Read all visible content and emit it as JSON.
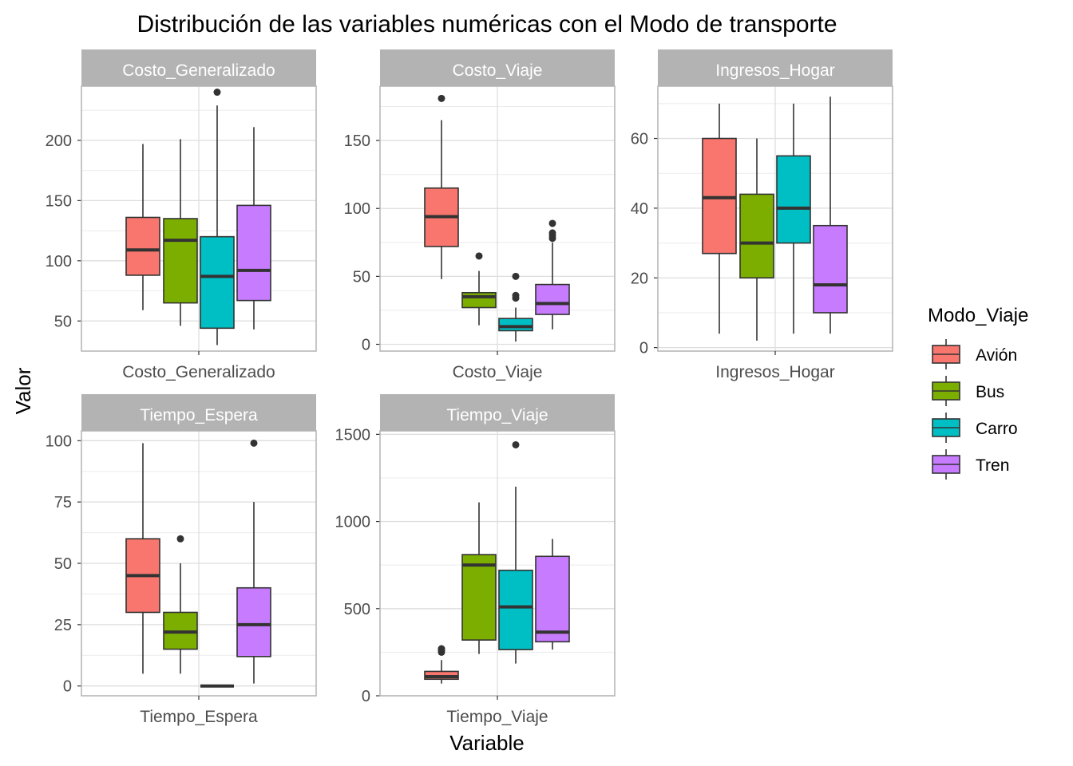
{
  "chart_data": {
    "type": "boxplot",
    "title": "Distribución de las variables numéricas con el Modo de transporte",
    "xlabel": "Variable",
    "ylabel": "Valor",
    "legend": {
      "title": "Modo_Viaje",
      "position": "right",
      "entries": [
        "Avión",
        "Bus",
        "Carro",
        "Tren"
      ]
    },
    "colors": {
      "Avión": "#F8766D",
      "Bus": "#7CAE00",
      "Carro": "#00BFC4",
      "Tren": "#C77CFF"
    },
    "grid": true,
    "facets": [
      {
        "name": "Costo_Generalizado",
        "ylim": [
          25,
          245
        ],
        "yticks": [
          50,
          100,
          150,
          200
        ],
        "boxes": [
          {
            "group": "Avión",
            "whisker_low": 59,
            "q1": 88,
            "median": 109,
            "q3": 136,
            "whisker_high": 197,
            "outliers": []
          },
          {
            "group": "Bus",
            "whisker_low": 46,
            "q1": 65,
            "median": 117,
            "q3": 135,
            "whisker_high": 201,
            "outliers": []
          },
          {
            "group": "Carro",
            "whisker_low": 30,
            "q1": 44,
            "median": 87,
            "q3": 120,
            "whisker_high": 229,
            "outliers": [
              240
            ]
          },
          {
            "group": "Tren",
            "whisker_low": 43,
            "q1": 67,
            "median": 92,
            "q3": 146,
            "whisker_high": 211,
            "outliers": []
          }
        ]
      },
      {
        "name": "Costo_Viaje",
        "ylim": [
          -5,
          190
        ],
        "yticks": [
          0,
          50,
          100,
          150
        ],
        "boxes": [
          {
            "group": "Avión",
            "whisker_low": 48,
            "q1": 72,
            "median": 94,
            "q3": 115,
            "whisker_high": 165,
            "outliers": [
              181
            ]
          },
          {
            "group": "Bus",
            "whisker_low": 14,
            "q1": 27,
            "median": 35,
            "q3": 38,
            "whisker_high": 54,
            "outliers": [
              65
            ]
          },
          {
            "group": "Carro",
            "whisker_low": 2,
            "q1": 10,
            "median": 13,
            "q3": 19,
            "whisker_high": 27,
            "outliers": [
              34,
              36,
              50
            ]
          },
          {
            "group": "Tren",
            "whisker_low": 11,
            "q1": 22,
            "median": 30,
            "q3": 44,
            "whisker_high": 75,
            "outliers": [
              78,
              80,
              82,
              89
            ]
          }
        ]
      },
      {
        "name": "Ingresos_Hogar",
        "ylim": [
          -1,
          75
        ],
        "yticks": [
          0,
          20,
          40,
          60
        ],
        "boxes": [
          {
            "group": "Avión",
            "whisker_low": 4,
            "q1": 27,
            "median": 43,
            "q3": 60,
            "whisker_high": 70,
            "outliers": []
          },
          {
            "group": "Bus",
            "whisker_low": 2,
            "q1": 20,
            "median": 30,
            "q3": 44,
            "whisker_high": 60,
            "outliers": []
          },
          {
            "group": "Carro",
            "whisker_low": 4,
            "q1": 30,
            "median": 40,
            "q3": 55,
            "whisker_high": 70,
            "outliers": []
          },
          {
            "group": "Tren",
            "whisker_low": 4,
            "q1": 10,
            "median": 18,
            "q3": 35,
            "whisker_high": 72,
            "outliers": []
          }
        ]
      },
      {
        "name": "Tiempo_Espera",
        "ylim": [
          -4,
          104
        ],
        "yticks": [
          0,
          25,
          50,
          75,
          100
        ],
        "boxes": [
          {
            "group": "Avión",
            "whisker_low": 5,
            "q1": 30,
            "median": 45,
            "q3": 60,
            "whisker_high": 99,
            "outliers": []
          },
          {
            "group": "Bus",
            "whisker_low": 5,
            "q1": 15,
            "median": 22,
            "q3": 30,
            "whisker_high": 50,
            "outliers": [
              60
            ]
          },
          {
            "group": "Carro",
            "whisker_low": 0,
            "q1": 0,
            "median": 0,
            "q3": 0,
            "whisker_high": 0,
            "outliers": []
          },
          {
            "group": "Tren",
            "whisker_low": 1,
            "q1": 12,
            "median": 25,
            "q3": 40,
            "whisker_high": 75,
            "outliers": [
              99
            ]
          }
        ]
      },
      {
        "name": "Tiempo_Viaje",
        "ylim": [
          0,
          1520
        ],
        "yticks": [
          0,
          500,
          1000,
          1500
        ],
        "boxes": [
          {
            "group": "Avión",
            "whisker_low": 70,
            "q1": 95,
            "median": 110,
            "q3": 140,
            "whisker_high": 205,
            "outliers": [
              250,
              260,
              270
            ]
          },
          {
            "group": "Bus",
            "whisker_low": 240,
            "q1": 320,
            "median": 750,
            "q3": 810,
            "whisker_high": 1110,
            "outliers": []
          },
          {
            "group": "Carro",
            "whisker_low": 185,
            "q1": 265,
            "median": 510,
            "q3": 720,
            "whisker_high": 1200,
            "outliers": [
              1440
            ]
          },
          {
            "group": "Tren",
            "whisker_low": 265,
            "q1": 310,
            "median": 365,
            "q3": 800,
            "whisker_high": 900,
            "outliers": []
          }
        ]
      }
    ]
  }
}
